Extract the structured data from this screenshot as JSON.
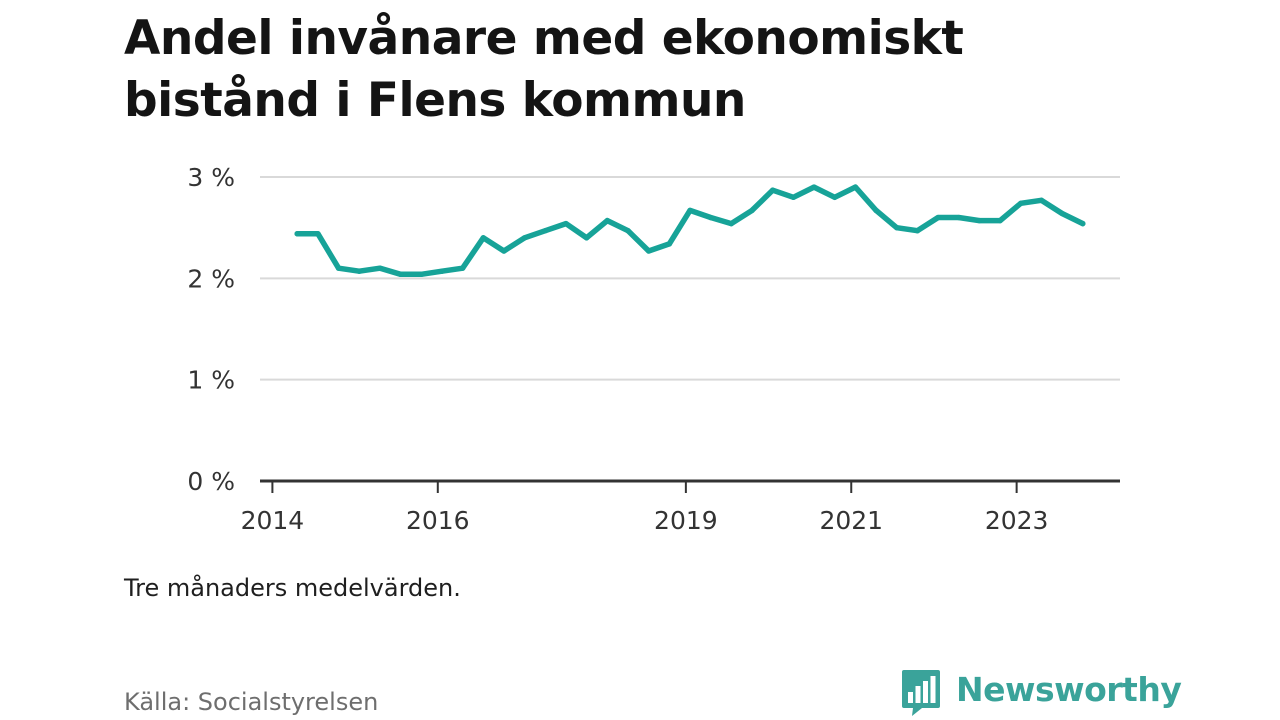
{
  "title": "Andel invånare med ekonomiskt bistånd i Flens kommun",
  "subtitle": "Tre månaders medelvärden.",
  "source": "Källa: Socialstyrelsen",
  "brand": {
    "name": "Newsworthy",
    "color": "#3aa39a"
  },
  "chart_data": {
    "type": "line",
    "title": "Andel invånare med ekonomiskt bistånd i Flens kommun",
    "xlabel": "",
    "ylabel": "",
    "ylim": [
      0,
      3
    ],
    "xlim": [
      2013.85,
      2024.25
    ],
    "grid": true,
    "legend": "none",
    "y_ticks": [
      {
        "value": 0,
        "label": "0 %"
      },
      {
        "value": 1,
        "label": "1 %"
      },
      {
        "value": 2,
        "label": "2 %"
      },
      {
        "value": 3,
        "label": "3 %"
      }
    ],
    "x_ticks": [
      {
        "value": 2014,
        "label": "2014"
      },
      {
        "value": 2016,
        "label": "2016"
      },
      {
        "value": 2019,
        "label": "2019"
      },
      {
        "value": 2021,
        "label": "2021"
      },
      {
        "value": 2023,
        "label": "2023"
      }
    ],
    "series": [
      {
        "color": "#17a398",
        "x": [
          2014.3,
          2014.55,
          2014.8,
          2015.05,
          2015.3,
          2015.55,
          2015.8,
          2016.05,
          2016.3,
          2016.55,
          2016.8,
          2017.05,
          2017.3,
          2017.55,
          2017.8,
          2018.05,
          2018.3,
          2018.55,
          2018.8,
          2019.05,
          2019.3,
          2019.55,
          2019.8,
          2020.05,
          2020.3,
          2020.55,
          2020.8,
          2021.05,
          2021.3,
          2021.55,
          2021.8,
          2022.05,
          2022.3,
          2022.55,
          2022.8,
          2023.05,
          2023.3,
          2023.55,
          2023.8
        ],
        "values": [
          2.44,
          2.44,
          2.1,
          2.07,
          2.1,
          2.04,
          2.04,
          2.07,
          2.1,
          2.4,
          2.27,
          2.4,
          2.47,
          2.54,
          2.4,
          2.57,
          2.47,
          2.27,
          2.34,
          2.67,
          2.6,
          2.54,
          2.67,
          2.87,
          2.8,
          2.9,
          2.8,
          2.9,
          2.67,
          2.5,
          2.47,
          2.6,
          2.6,
          2.57,
          2.57,
          2.74,
          2.77,
          2.64,
          2.54
        ]
      }
    ]
  }
}
